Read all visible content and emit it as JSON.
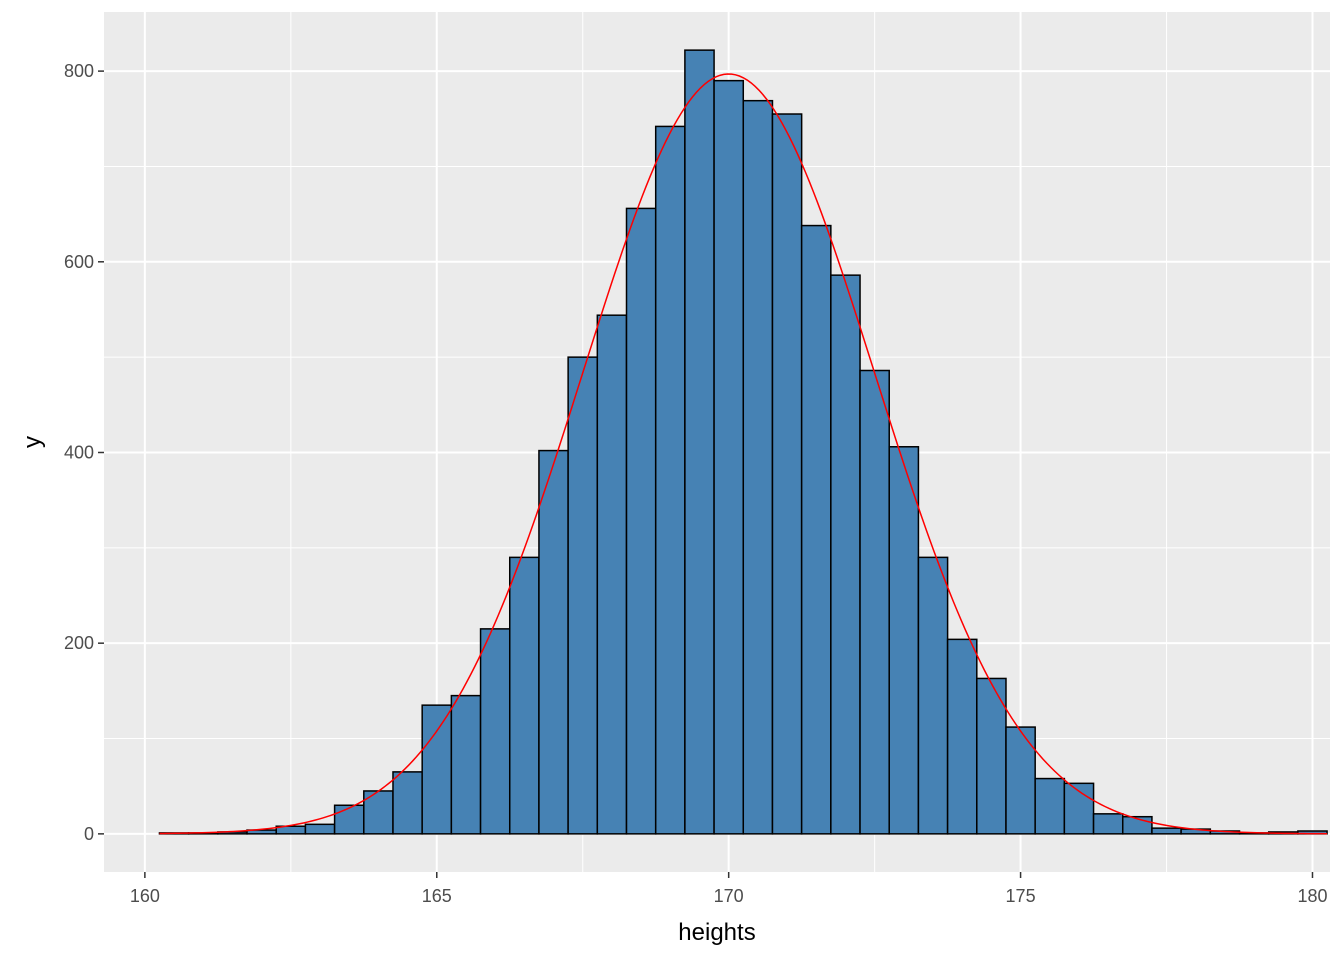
{
  "chart_data": {
    "type": "bar",
    "xlabel": "heights",
    "ylabel": "y",
    "xlim": [
      159.3,
      180.3
    ],
    "ylim": [
      -40,
      862
    ],
    "xticks": [
      160,
      165,
      170,
      175,
      180
    ],
    "yticks": [
      0,
      200,
      400,
      600,
      800
    ],
    "grid": true,
    "legend": "none",
    "colors": {
      "panel": "#EBEBEB",
      "grid": "#FFFFFF",
      "bar_fill": "#4682B4",
      "bar_outline": "#000000",
      "curve": "#FF0000"
    },
    "bin_start": 160.25,
    "bin_width": 0.5,
    "values": [
      1,
      1,
      2,
      4,
      8,
      10,
      30,
      45,
      65,
      135,
      145,
      215,
      290,
      402,
      500,
      544,
      656,
      742,
      822,
      790,
      769,
      755,
      638,
      586,
      486,
      406,
      290,
      204,
      163,
      112,
      58,
      53,
      21,
      18,
      6,
      5,
      3,
      1,
      2,
      3
    ],
    "series": [
      {
        "type": "histogram"
      },
      {
        "type": "density_curve",
        "mean": 170,
        "sd": 2.5,
        "peak": 797
      }
    ]
  }
}
